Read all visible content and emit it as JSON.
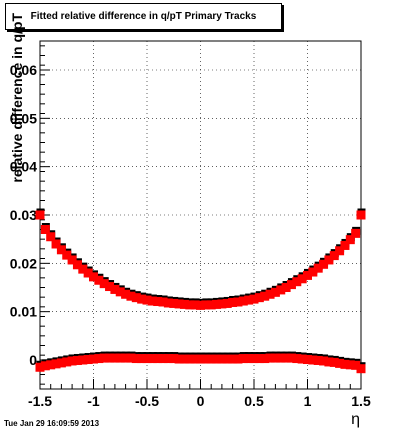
{
  "title": "Fitted relative difference in q/pT  Primary Tracks",
  "xlabel": "η",
  "ylabel": "relative difference in q/pT",
  "timestamp": "Tue Jan 29 16:09:59 2013",
  "colors": {
    "marker": "#ff0000",
    "outline": "#000000",
    "background": "#ffffff"
  },
  "chart_data": {
    "type": "scatter",
    "title": "Fitted relative difference in q/pT  Primary Tracks",
    "xlabel": "η",
    "ylabel": "relative difference in q/pT",
    "xlim": [
      -1.5,
      1.5
    ],
    "ylim": [
      -0.006,
      0.066
    ],
    "grid": true,
    "xticks": [
      "-1.5",
      "-1",
      "-0.5",
      "0",
      "0.5",
      "1",
      "1.5"
    ],
    "yticks": [
      "0",
      "0.01",
      "0.02",
      "0.03",
      "0.04",
      "0.05",
      "0.06"
    ],
    "series": [
      {
        "x": [
          -1.5,
          -1.45,
          -1.4,
          -1.35,
          -1.3,
          -1.25,
          -1.2,
          -1.15,
          -1.1,
          -1.05,
          -1.0,
          -0.95,
          -0.9,
          -0.85,
          -0.8,
          -0.75,
          -0.7,
          -0.65,
          -0.6,
          -0.55,
          -0.5,
          -0.45,
          -0.4,
          -0.35,
          -0.3,
          -0.25,
          -0.2,
          -0.15,
          -0.1,
          -0.05,
          0.0,
          0.05,
          0.1,
          0.15,
          0.2,
          0.25,
          0.3,
          0.35,
          0.4,
          0.45,
          0.5,
          0.55,
          0.6,
          0.65,
          0.7,
          0.75,
          0.8,
          0.85,
          0.9,
          0.95,
          1.0,
          1.05,
          1.1,
          1.15,
          1.2,
          1.25,
          1.3,
          1.35,
          1.4,
          1.45,
          1.5
        ],
        "y": [
          0.03,
          0.027,
          0.0255,
          0.024,
          0.0228,
          0.0217,
          0.0207,
          0.0197,
          0.0188,
          0.018,
          0.0172,
          0.0165,
          0.0158,
          0.0152,
          0.0146,
          0.0141,
          0.0136,
          0.0132,
          0.0129,
          0.0126,
          0.0124,
          0.0122,
          0.0121,
          0.012,
          0.0118,
          0.0117,
          0.0116,
          0.0115,
          0.0114,
          0.0114,
          0.0113,
          0.0114,
          0.0114,
          0.0115,
          0.0116,
          0.0117,
          0.0119,
          0.012,
          0.0122,
          0.0124,
          0.0126,
          0.0129,
          0.0132,
          0.0136,
          0.014,
          0.0145,
          0.015,
          0.0156,
          0.0162,
          0.0168,
          0.0175,
          0.0182,
          0.019,
          0.0198,
          0.0207,
          0.0216,
          0.0226,
          0.0237,
          0.0249,
          0.0262,
          0.03
        ]
      },
      {
        "x": [
          -1.5,
          -1.45,
          -1.4,
          -1.35,
          -1.3,
          -1.25,
          -1.2,
          -1.15,
          -1.1,
          -1.05,
          -1.0,
          -0.95,
          -0.9,
          -0.85,
          -0.8,
          -0.75,
          -0.7,
          -0.65,
          -0.6,
          -0.55,
          -0.5,
          -0.45,
          -0.4,
          -0.35,
          -0.3,
          -0.25,
          -0.2,
          -0.15,
          -0.1,
          -0.05,
          0.0,
          0.05,
          0.1,
          0.15,
          0.2,
          0.25,
          0.3,
          0.35,
          0.4,
          0.45,
          0.5,
          0.55,
          0.6,
          0.65,
          0.7,
          0.75,
          0.8,
          0.85,
          0.9,
          0.95,
          1.0,
          1.05,
          1.1,
          1.15,
          1.2,
          1.25,
          1.3,
          1.35,
          1.4,
          1.45,
          1.5
        ],
        "y": [
          -0.0015,
          -0.0012,
          -0.001,
          -0.0008,
          -0.0006,
          -0.0004,
          -0.0002,
          -0.0001,
          0.0,
          0.0001,
          0.0002,
          0.0003,
          0.0004,
          0.0004,
          0.0004,
          0.0004,
          0.0004,
          0.0004,
          0.0003,
          0.0003,
          0.0003,
          0.0003,
          0.0003,
          0.0003,
          0.0003,
          0.0003,
          0.0002,
          0.0002,
          0.0002,
          0.0002,
          0.0002,
          0.0002,
          0.0002,
          0.0002,
          0.0002,
          0.0002,
          0.0002,
          0.0002,
          0.0003,
          0.0003,
          0.0003,
          0.0003,
          0.0003,
          0.0004,
          0.0004,
          0.0004,
          0.0004,
          0.0004,
          0.0003,
          0.0002,
          0.0001,
          0.0,
          -0.0001,
          -0.0002,
          -0.0004,
          -0.0005,
          -0.0007,
          -0.0009,
          -0.001,
          -0.0011,
          -0.0018
        ]
      }
    ]
  }
}
